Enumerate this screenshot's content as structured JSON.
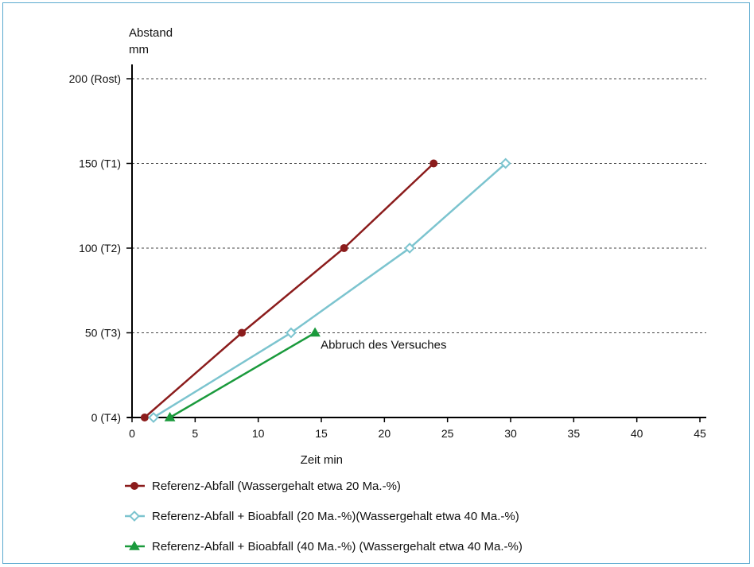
{
  "chart_data": {
    "type": "line",
    "title": "",
    "xlabel": "Zeit  min",
    "ylabel_lines": [
      "Abstand",
      "mm"
    ],
    "xlim": [
      0,
      45
    ],
    "ylim": [
      0,
      200
    ],
    "x_ticks": [
      0,
      5,
      10,
      15,
      20,
      25,
      30,
      35,
      40,
      45
    ],
    "y_ticks": [
      {
        "value": 0,
        "label": "0 (T4)"
      },
      {
        "value": 50,
        "label": "50 (T3)"
      },
      {
        "value": 100,
        "label": "100 (T2)"
      },
      {
        "value": 150,
        "label": "150 (T1)"
      },
      {
        "value": 200,
        "label": "200 (Rost)"
      }
    ],
    "grid": "horizontal dashed",
    "legend_position": "bottom",
    "series": [
      {
        "name": "Referenz-Abfall (Wassergehalt etwa 20 Ma.-%)",
        "color": "#8b1c1c",
        "marker": "circle",
        "points": [
          [
            1,
            0
          ],
          [
            8.7,
            50
          ],
          [
            16.8,
            100
          ],
          [
            23.9,
            150
          ]
        ]
      },
      {
        "name": "Referenz-Abfall + Bioabfall (20 Ma.-%)(Wassergehalt etwa 40 Ma.-%)",
        "color": "#7cc4cf",
        "marker": "diamond-open",
        "points": [
          [
            1.7,
            0
          ],
          [
            12.6,
            50
          ],
          [
            22,
            100
          ],
          [
            29.6,
            150
          ]
        ]
      },
      {
        "name": "Referenz-Abfall + Bioabfall (40 Ma.-%) (Wassergehalt etwa 40 Ma.-%)",
        "color": "#1a9a3c",
        "marker": "triangle",
        "points": [
          [
            3,
            0
          ],
          [
            14.5,
            50
          ]
        ]
      }
    ],
    "annotations": [
      {
        "text": "Abbruch des Versuches",
        "x": 14.5,
        "y": 50
      }
    ]
  }
}
